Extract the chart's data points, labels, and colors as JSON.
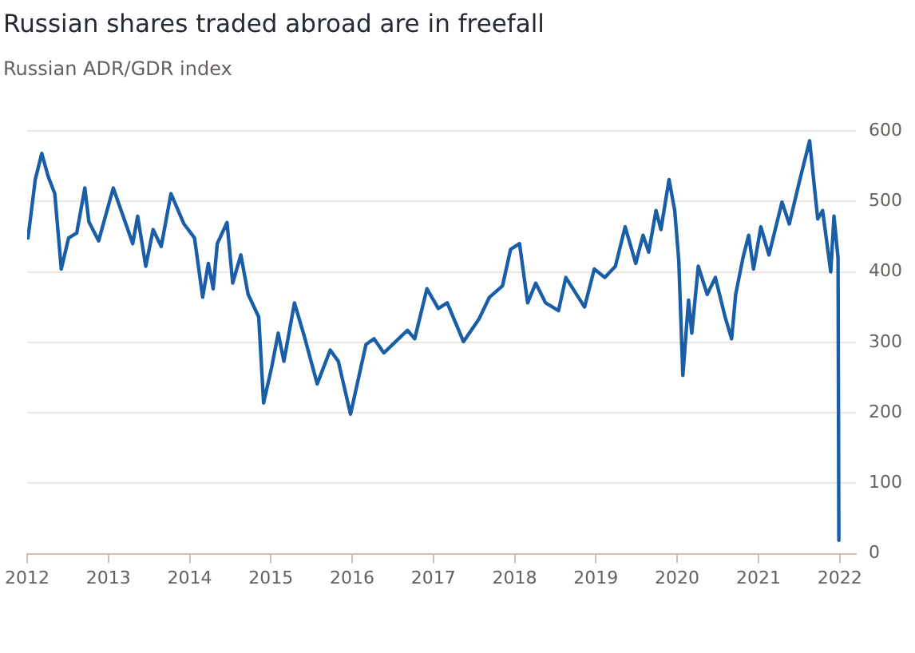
{
  "chart_data": {
    "type": "line",
    "title": "Russian shares traded abroad are in freefall",
    "subtitle": "Russian ADR/GDR index",
    "x": [
      2012.01,
      2012.04,
      2012.1,
      2012.18,
      2012.26,
      2012.34,
      2012.42,
      2012.51,
      2012.61,
      2012.71,
      2012.76,
      2012.88,
      2013.06,
      2013.3,
      2013.36,
      2013.46,
      2013.55,
      2013.65,
      2013.77,
      2013.93,
      2014.06,
      2014.16,
      2014.23,
      2014.29,
      2014.34,
      2014.46,
      2014.53,
      2014.63,
      2014.72,
      2014.85,
      2014.91,
      2015.01,
      2015.09,
      2015.16,
      2015.29,
      2015.41,
      2015.57,
      2015.73,
      2015.83,
      2015.98,
      2016.17,
      2016.27,
      2016.39,
      2016.68,
      2016.77,
      2016.92,
      2017.06,
      2017.17,
      2017.37,
      2017.56,
      2017.69,
      2017.85,
      2017.95,
      2018.06,
      2018.16,
      2018.26,
      2018.38,
      2018.54,
      2018.63,
      2018.86,
      2018.98,
      2019.11,
      2019.24,
      2019.36,
      2019.49,
      2019.58,
      2019.65,
      2019.74,
      2019.8,
      2019.9,
      2019.97,
      2020.02,
      2020.07,
      2020.14,
      2020.18,
      2020.26,
      2020.37,
      2020.47,
      2020.59,
      2020.67,
      2020.72,
      2020.81,
      2020.88,
      2020.94,
      2021.03,
      2021.13,
      2021.29,
      2021.38,
      2021.51,
      2021.63,
      2021.73,
      2021.79,
      2021.89,
      2021.93,
      2021.98,
      2021.99
    ],
    "series": [
      {
        "color": "#1a5ea8",
        "values": [
          448,
          475,
          531,
          568,
          535,
          511,
          404,
          448,
          455,
          519,
          471,
          444,
          519,
          440,
          479,
          408,
          460,
          436,
          511,
          468,
          448,
          364,
          412,
          376,
          440,
          470,
          384,
          424,
          368,
          336,
          214,
          265,
          313,
          273,
          356,
          309,
          241,
          289,
          273,
          198,
          297,
          305,
          285,
          317,
          305,
          376,
          348,
          356,
          301,
          333,
          364,
          380,
          432,
          440,
          356,
          384,
          356,
          345,
          392,
          350,
          404,
          392,
          408,
          464,
          412,
          452,
          428,
          487,
          460,
          531,
          487,
          416,
          253,
          360,
          313,
          408,
          368,
          392,
          336,
          305,
          368,
          420,
          452,
          404,
          464,
          424,
          499,
          468,
          531,
          586,
          475,
          487,
          400,
          479,
          420,
          19
        ]
      }
    ],
    "xlim": [
      2012,
      2022.2
    ],
    "xticks": [
      2012,
      2013,
      2014,
      2015,
      2016,
      2017,
      2018,
      2019,
      2020,
      2021,
      2022
    ],
    "ylim": [
      0,
      600
    ],
    "yticks": [
      0,
      100,
      200,
      300,
      400,
      500,
      600
    ],
    "grid": "y",
    "legend": false,
    "marker": "none",
    "line_style": "solid"
  }
}
